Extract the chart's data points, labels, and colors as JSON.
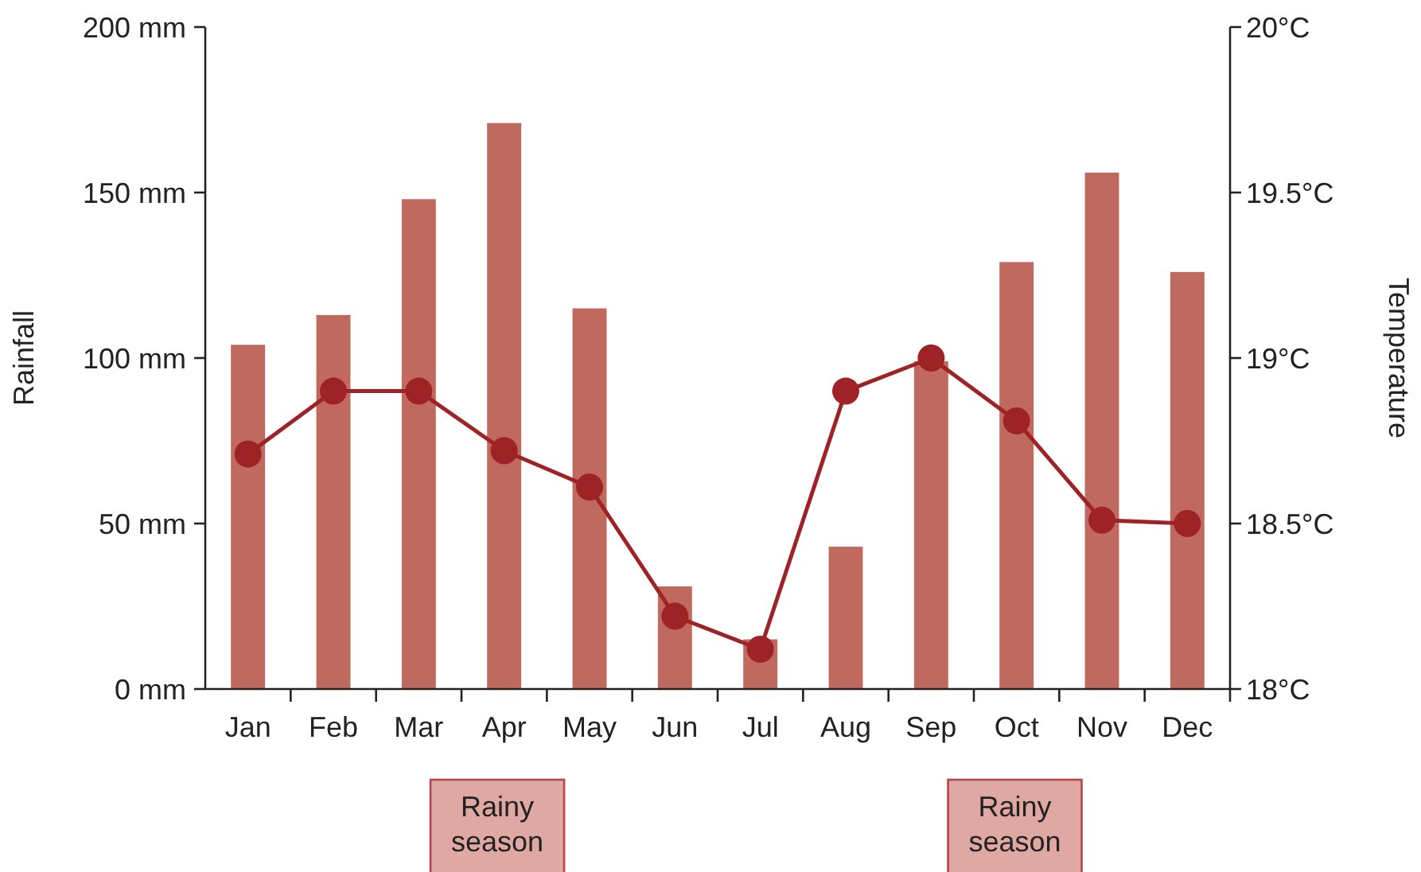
{
  "chart_data": {
    "type": "bar",
    "ylabel": "Rainfall",
    "y2label": "Temperature",
    "categories": [
      "Jan",
      "Feb",
      "Mar",
      "Apr",
      "May",
      "Jun",
      "Jul",
      "Aug",
      "Sep",
      "Oct",
      "Nov",
      "Dec"
    ],
    "series": [
      {
        "color": "#c0695f",
        "values": [
          104,
          113,
          148,
          171,
          115,
          31,
          15,
          43,
          99,
          129,
          156,
          126
        ]
      },
      {
        "type": "line",
        "axis": "y2",
        "color": "#9e2327",
        "marker": "circle",
        "line_style": "solid",
        "values": [
          18.71,
          18.9,
          18.9,
          18.72,
          18.61,
          18.22,
          18.12,
          18.9,
          19.0,
          18.81,
          18.51,
          18.5
        ]
      }
    ],
    "ylim": [
      0,
      200
    ],
    "yticks": [
      {
        "value": 0,
        "label": "0 mm"
      },
      {
        "value": 50,
        "label": "50 mm"
      },
      {
        "value": 100,
        "label": "100 mm"
      },
      {
        "value": 150,
        "label": "150 mm"
      },
      {
        "value": 200,
        "label": "200 mm"
      }
    ],
    "y2lim": [
      18,
      20
    ],
    "y2ticks": [
      {
        "value": 18,
        "label": "18°C"
      },
      {
        "value": 18.5,
        "label": "18.5°C"
      },
      {
        "value": 19,
        "label": "19°C"
      },
      {
        "value": 19.5,
        "label": "19.5°C"
      },
      {
        "value": 20,
        "label": "20°C"
      }
    ],
    "annotations": [
      "Rainy season",
      "Rainy season"
    ],
    "grid": false
  }
}
